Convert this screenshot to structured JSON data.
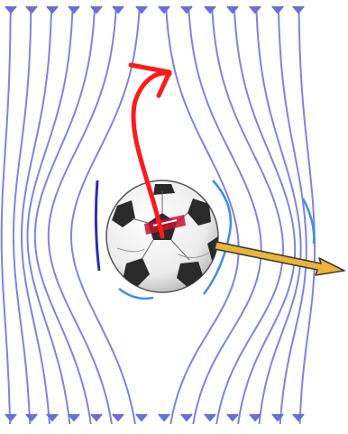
{
  "colors": {
    "background": "#ffffff",
    "streamline": "#6a6fd6",
    "streamline_dark": "#2b2fa8",
    "streamline_light": "#3f8fe0",
    "spin_arrow": "#ff1a1a",
    "force_arrow_fill": "#e9b53a",
    "force_arrow_outline": "#3a3a3a",
    "ball_white": "#f4f4f4",
    "ball_panel": "#2a2a2a",
    "ball_accent": "#c8102e"
  },
  "icons": {
    "ball": "soccer-ball-icon",
    "spin": "curved-arrow-icon",
    "force": "arrow-right-icon",
    "flow_direction": "arrow-down-icon"
  }
}
